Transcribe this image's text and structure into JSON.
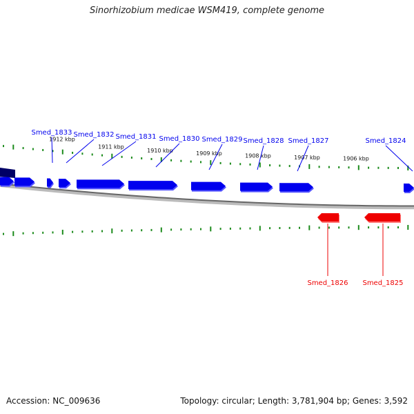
{
  "title": "Sinorhizobium medicae WSM419, complete genome",
  "footer": {
    "accession": "Accession: NC_009636",
    "summary": "Topology: circular; Length: 3,781,904 bp; Genes: 3,592"
  },
  "colors": {
    "forward": "#0000ee",
    "reverse": "#ee0000",
    "tick": "#1a8a1a",
    "backbone": "#888888",
    "highlight": "#000066"
  },
  "kbp_labels": [
    "1912 kbp",
    "1911 kbp",
    "1910 kbp",
    "1909 kbp",
    "1908 kbp",
    "1907 kbp",
    "1906 kbp"
  ],
  "forward_genes": [
    "Smed_1833",
    "Smed_1832",
    "Smed_1831",
    "Smed_1830",
    "Smed_1829",
    "Smed_1828",
    "Smed_1827",
    "Smed_1824"
  ],
  "reverse_genes": [
    "Smed_1826",
    "Smed_1825"
  ]
}
